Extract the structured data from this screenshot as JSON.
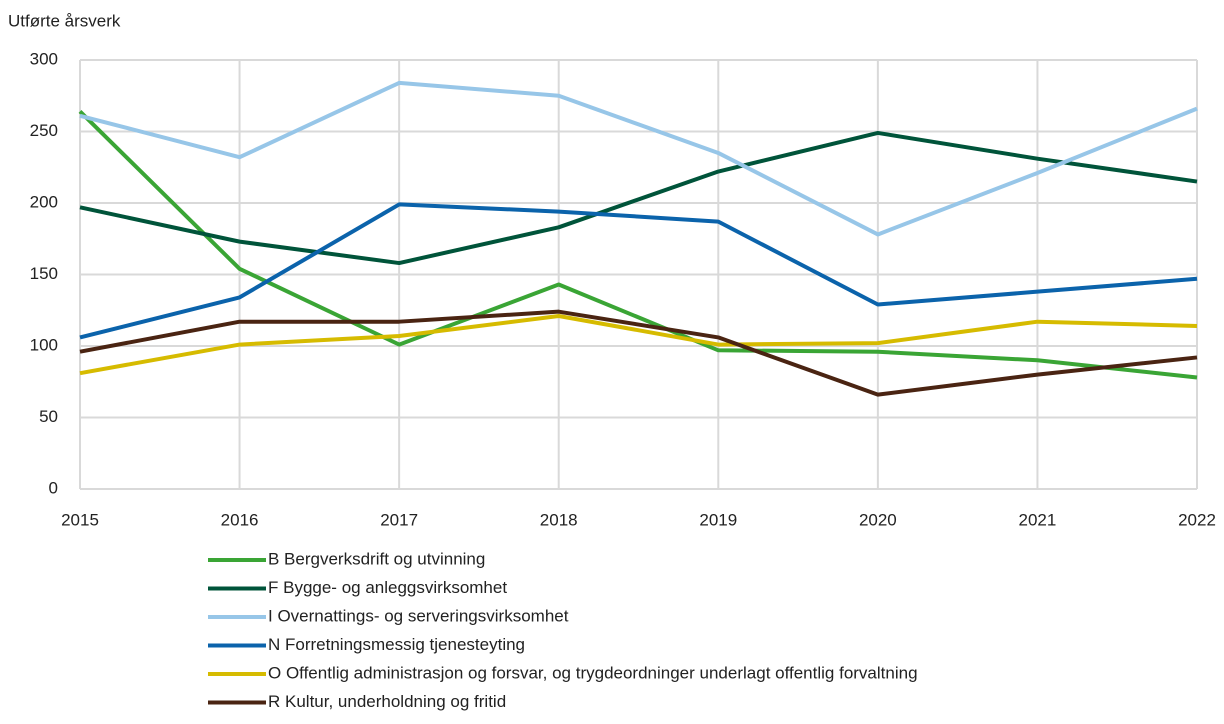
{
  "chart_data": {
    "type": "line",
    "y_label": "Utførte årsverk",
    "x": [
      2015,
      2016,
      2017,
      2018,
      2019,
      2020,
      2021,
      2022
    ],
    "xlim": [
      2015,
      2022
    ],
    "xticks": [
      2015,
      2016,
      2017,
      2018,
      2019,
      2020,
      2021,
      2022
    ],
    "ylim": [
      0,
      300
    ],
    "yticks": [
      0,
      50,
      100,
      150,
      200,
      250,
      300
    ],
    "grid": true,
    "series": [
      {
        "name": "B Bergverksdrift og utvinning",
        "color": "#3aa535",
        "values": [
          264,
          154,
          101,
          143,
          97,
          96,
          90,
          78
        ]
      },
      {
        "name": "F Bygge- og anleggsvirksomhet",
        "color": "#00543a",
        "values": [
          197,
          173,
          158,
          183,
          222,
          249,
          231,
          215
        ]
      },
      {
        "name": "I Overnattings- og serveringsvirksomhet",
        "color": "#97c6e8",
        "values": [
          261,
          232,
          284,
          275,
          235,
          178,
          221,
          266
        ]
      },
      {
        "name": "N Forretningsmessig tjenesteyting",
        "color": "#0b63ab",
        "values": [
          106,
          134,
          199,
          194,
          187,
          129,
          138,
          147
        ]
      },
      {
        "name": "O Offentlig administrasjon og forsvar, og trygdeordninger underlagt offentlig forvaltning",
        "color": "#d6bb00",
        "values": [
          81,
          101,
          107,
          121,
          101,
          102,
          117,
          114
        ]
      },
      {
        "name": "R Kultur, underholdning og fritid",
        "color": "#4a2412",
        "values": [
          96,
          117,
          117,
          124,
          106,
          66,
          80,
          92
        ]
      }
    ]
  }
}
